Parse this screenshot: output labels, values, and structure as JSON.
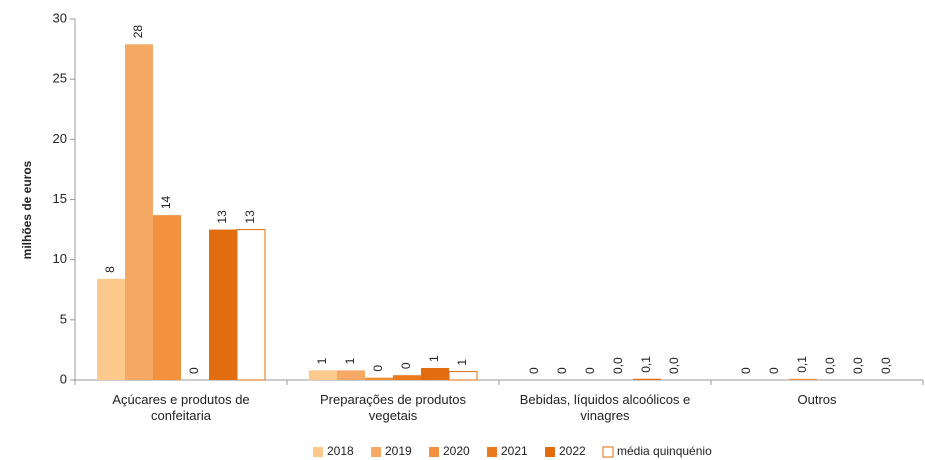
{
  "chart_data": {
    "type": "bar",
    "y_label": "milhões de euros",
    "categories": [
      "Açúcares e produtos de confeitaria",
      "Preparações de produtos vegetais",
      "Bebidas, líquidos alcoólicos e vinagres",
      "Outros"
    ],
    "series": [
      {
        "name": "2018",
        "color": "#fdc88c",
        "values": [
          8.4,
          0.8,
          0,
          0
        ],
        "value_labels": [
          "8",
          "1",
          "0",
          "0"
        ]
      },
      {
        "name": "2019",
        "color": "#f6a865",
        "values": [
          27.9,
          0.8,
          0,
          0
        ],
        "value_labels": [
          "28",
          "1",
          "0",
          "0"
        ]
      },
      {
        "name": "2020",
        "color": "#f3913f",
        "values": [
          13.7,
          0.2,
          0,
          0.1
        ],
        "value_labels": [
          "14",
          "0",
          "0",
          "0,1"
        ]
      },
      {
        "name": "2021",
        "color": "#eb7a1e",
        "values": [
          0,
          0.4,
          0.0,
          0.0
        ],
        "value_labels": [
          "0",
          "0",
          "0,0",
          "0,0"
        ]
      },
      {
        "name": "2022",
        "color": "#e26d0e",
        "values": [
          12.5,
          1.0,
          0.1,
          0.0
        ],
        "value_labels": [
          "13",
          "1",
          "0,1",
          "0,0"
        ]
      },
      {
        "name": "média quinquénio",
        "color": "#ffffff",
        "stroke": "#e26d0e",
        "values": [
          12.5,
          0.7,
          0.0,
          0.0
        ],
        "value_labels": [
          "13",
          "1",
          "0,0",
          "0,0"
        ]
      }
    ],
    "ylim": [
      0,
      30
    ],
    "yticks": [
      0,
      5,
      10,
      15,
      20,
      25,
      30
    ],
    "grid": false,
    "legend": "bottom"
  }
}
